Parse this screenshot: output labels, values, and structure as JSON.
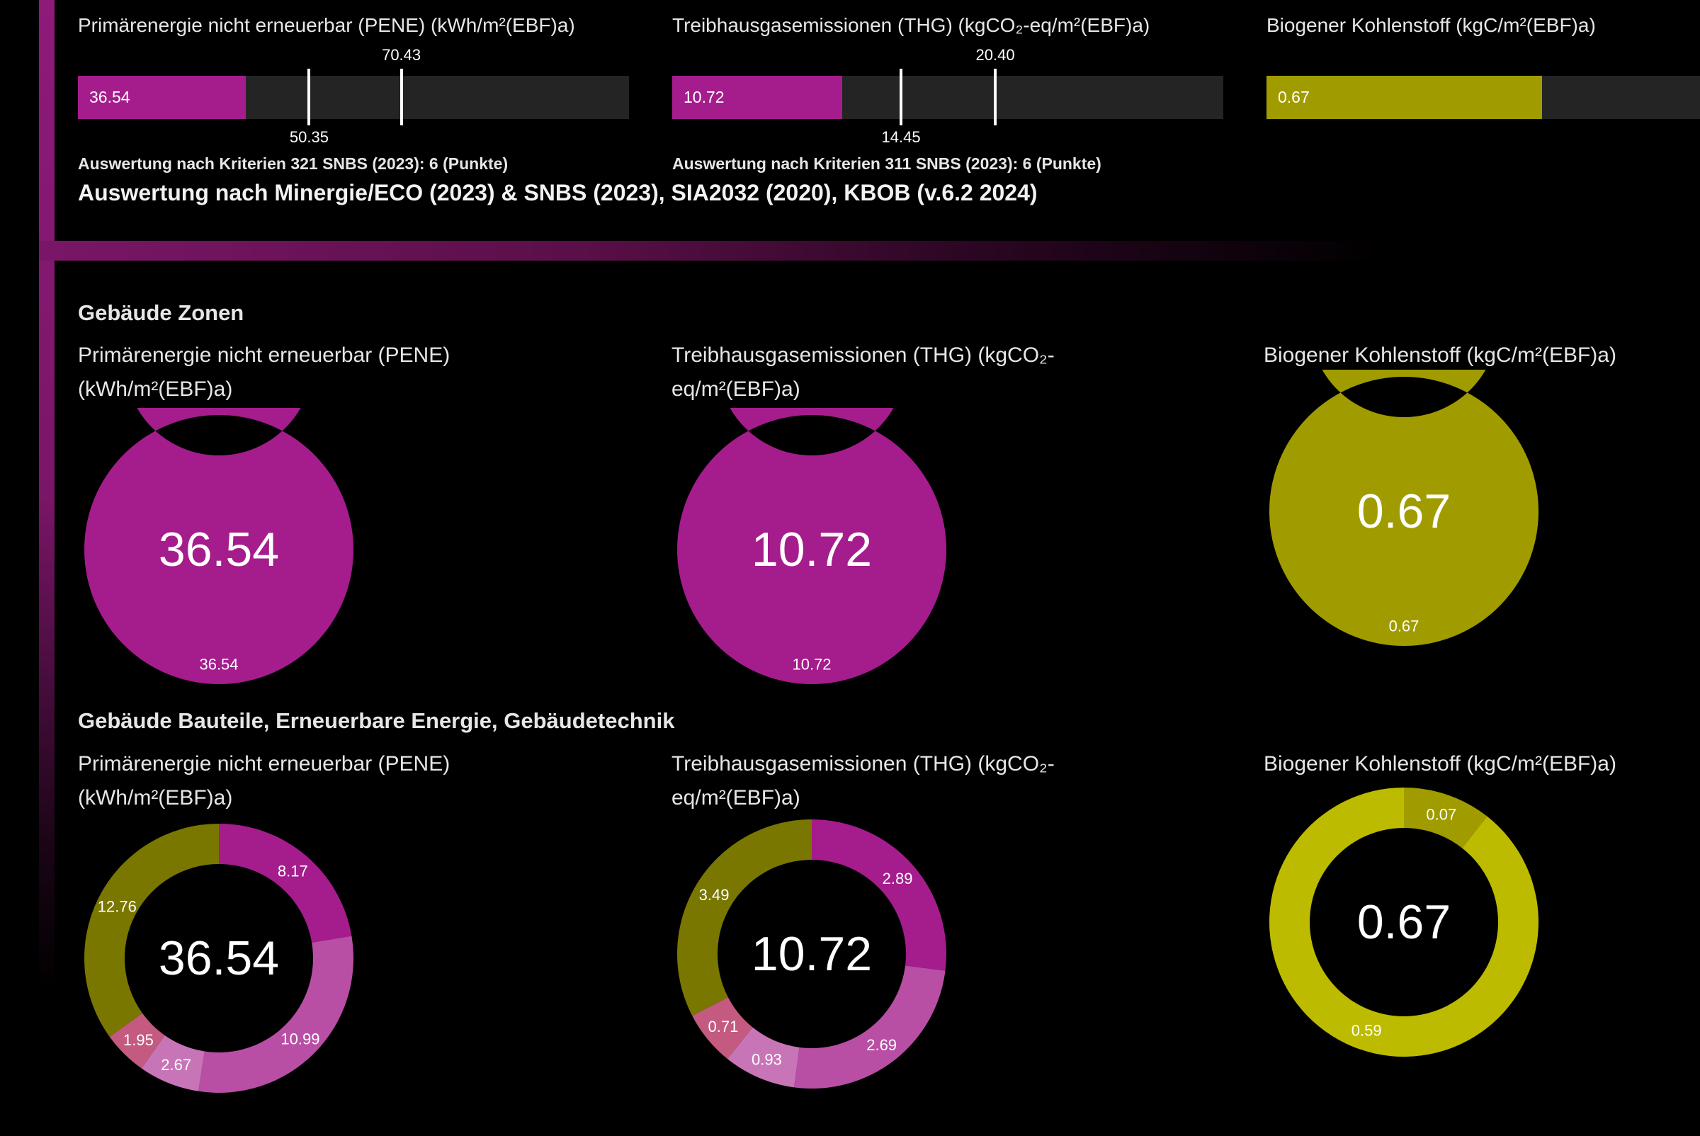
{
  "top": {
    "bars": [
      {
        "title": "Primärenergie nicht erneuerbar (PENE) (kWh/m²(EBF)a)",
        "value": 36.54,
        "value_label": "36.54",
        "scale_max": 120,
        "color": "#a51c8c",
        "markers": [
          {
            "value": 50.35,
            "label": "50.35",
            "pos": "below"
          },
          {
            "value": 70.43,
            "label": "70.43",
            "pos": "above"
          }
        ],
        "criteria": "Auswertung nach Kriterien 321 SNBS (2023): 6 (Punkte)"
      },
      {
        "title": "Treibhausgasemissionen (THG) (kgCO₂-eq/m²(EBF)a)",
        "value": 10.72,
        "value_label": "10.72",
        "scale_max": 34.8,
        "color": "#a51c8c",
        "markers": [
          {
            "value": 14.45,
            "label": "14.45",
            "pos": "below"
          },
          {
            "value": 20.4,
            "label": "20.40",
            "pos": "above"
          }
        ],
        "criteria": "Auswertung nach Kriterien 311 SNBS (2023): 6 (Punkte)"
      },
      {
        "title": "Biogener Kohlenstoff (kgC/m²(EBF)a)",
        "value": 0.67,
        "value_label": "0.67",
        "scale_max": 1.34,
        "color": "#a09c00",
        "markers": []
      }
    ],
    "heading": "Auswertung nach Minergie/ECO (2023) & SNBS (2023), SIA2032 (2020), KBOB (v.6.2 2024)"
  },
  "sections": [
    {
      "heading": "Gebäude Zonen",
      "charts": [
        {
          "title_line1": "Primärenergie nicht erneuerbar (PENE)",
          "title_line2": "(kWh/m²(EBF)a)",
          "total": "36.54",
          "segments": [
            {
              "value": 36.54,
              "label": "36.54",
              "color": "#a51c8c"
            }
          ]
        },
        {
          "title_line1": "Treibhausgasemissionen (THG) (kgCO₂-",
          "title_line2": "eq/m²(EBF)a)",
          "total": "10.72",
          "segments": [
            {
              "value": 10.72,
              "label": "10.72",
              "color": "#a51c8c"
            }
          ]
        },
        {
          "title_line1": "Biogener Kohlenstoff (kgC/m²(EBF)a)",
          "title_line2": "",
          "total": "0.67",
          "segments": [
            {
              "value": 0.67,
              "label": "0.67",
              "color": "#a09c00"
            }
          ]
        }
      ]
    },
    {
      "heading": "Gebäude Bauteile, Erneuerbare Energie, Gebäudetechnik",
      "charts": [
        {
          "title_line1": "Primärenergie nicht erneuerbar (PENE)",
          "title_line2": "(kWh/m²(EBF)a)",
          "total": "36.54",
          "segments": [
            {
              "value": 0,
              "label": "0",
              "color": "#7a7700"
            },
            {
              "value": 8.17,
              "label": "8.17",
              "color": "#a51c8c"
            },
            {
              "value": 10.99,
              "label": "10.99",
              "color": "#b94fa5"
            },
            {
              "value": 2.67,
              "label": "2.67",
              "color": "#c875b8"
            },
            {
              "value": 1.95,
              "label": "1.95",
              "color": "#c45a80"
            },
            {
              "value": 12.76,
              "label": "12.76",
              "color": "#7a7700"
            }
          ]
        },
        {
          "title_line1": "Treibhausgasemissionen (THG) (kgCO₂-",
          "title_line2": "eq/m²(EBF)a)",
          "total": "10.72",
          "segments": [
            {
              "value": 0,
              "label": "0",
              "color": "#7a7700"
            },
            {
              "value": 2.89,
              "label": "2.89",
              "color": "#a51c8c"
            },
            {
              "value": 2.69,
              "label": "2.69",
              "color": "#b94fa5"
            },
            {
              "value": 0.93,
              "label": "0.93",
              "color": "#c875b8"
            },
            {
              "value": 0.71,
              "label": "0.71",
              "color": "#c45a80"
            },
            {
              "value": 3.49,
              "label": "3.49",
              "color": "#7a7700"
            }
          ]
        },
        {
          "title_line1": "Biogener Kohlenstoff (kgC/m²(EBF)a)",
          "title_line2": "",
          "total": "0.67",
          "segments": [
            {
              "value": 0,
              "label": "0",
              "color": "#bcbb00"
            },
            {
              "value": 0.07,
              "label": "0.07",
              "color": "#a09c00"
            },
            {
              "value": 0.59,
              "label": "0.59",
              "color": "#bcbb00"
            }
          ]
        }
      ]
    }
  ],
  "chart_data": [
    {
      "type": "bar",
      "title": "Primärenergie nicht erneuerbar (PENE) (kWh/m²(EBF)a)",
      "values": [
        36.54
      ],
      "reference_lines": [
        50.35,
        70.43
      ]
    },
    {
      "type": "bar",
      "title": "Treibhausgasemissionen (THG) (kgCO₂-eq/m²(EBF)a)",
      "values": [
        10.72
      ],
      "reference_lines": [
        14.45,
        20.4
      ]
    },
    {
      "type": "bar",
      "title": "Biogener Kohlenstoff (kgC/m²(EBF)a)",
      "values": [
        0.67
      ]
    },
    {
      "type": "pie",
      "title": "Gebäude Zonen – PENE",
      "values": [
        36.54
      ]
    },
    {
      "type": "pie",
      "title": "Gebäude Zonen – THG",
      "values": [
        10.72
      ]
    },
    {
      "type": "pie",
      "title": "Gebäude Zonen – Biogener Kohlenstoff",
      "values": [
        0.67
      ]
    },
    {
      "type": "pie",
      "title": "Gebäude Bauteile – PENE",
      "values": [
        0,
        8.17,
        10.99,
        2.67,
        1.95,
        12.76
      ]
    },
    {
      "type": "pie",
      "title": "Gebäude Bauteile – THG",
      "values": [
        0,
        2.89,
        2.69,
        0.93,
        0.71,
        3.49
      ]
    },
    {
      "type": "pie",
      "title": "Gebäude Bauteile – Biogener Kohlenstoff",
      "values": [
        0,
        0.07,
        0.59
      ]
    }
  ]
}
